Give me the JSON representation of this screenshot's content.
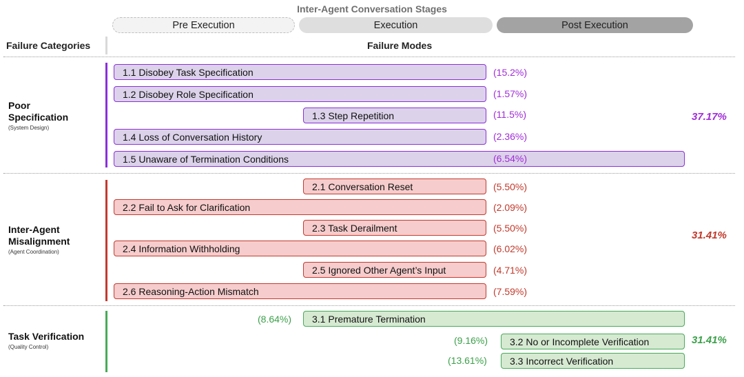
{
  "title": "Inter-Agent Conversation Stages",
  "stages": {
    "pre": "Pre Execution",
    "execution": "Execution",
    "post": "Post Execution"
  },
  "headers": {
    "categories": "Failure Categories",
    "modes": "Failure Modes"
  },
  "colors": {
    "poor_spec": "#8b2fd9",
    "misalignment": "#c33a2e",
    "verification": "#48aa58"
  },
  "categories": [
    {
      "title_line1": "Poor",
      "title_line2": "Specification",
      "subtitle": "(System Design)",
      "total": "37.17%",
      "modes": [
        {
          "label": "1.1 Disobey Task Specification",
          "pct": "(15.2%)"
        },
        {
          "label": "1.2 Disobey Role Specification",
          "pct": "(1.57%)"
        },
        {
          "label": "1.3 Step Repetition",
          "pct": "(11.5%)"
        },
        {
          "label": "1.4 Loss of Conversation History",
          "pct": "(2.36%)"
        },
        {
          "label": "1.5 Unaware of Termination Conditions",
          "pct": "(6.54%)"
        }
      ]
    },
    {
      "title_line1": "Inter-Agent",
      "title_line2": "Misalignment",
      "subtitle": "(Agent Coordination)",
      "total": "31.41%",
      "modes": [
        {
          "label": "2.1 Conversation Reset",
          "pct": "(5.50%)"
        },
        {
          "label": "2.2 Fail to Ask for Clarification",
          "pct": "(2.09%)"
        },
        {
          "label": "2.3 Task Derailment",
          "pct": "(5.50%)"
        },
        {
          "label": "2.4 Information Withholding",
          "pct": "(6.02%)"
        },
        {
          "label": "2.5 Ignored Other Agent’s Input",
          "pct": "(4.71%)"
        },
        {
          "label": "2.6 Reasoning-Action Mismatch",
          "pct": "(7.59%)"
        }
      ]
    },
    {
      "title_line1": "Task Verification",
      "subtitle": "(Quality Control)",
      "total": "31.41%",
      "modes": [
        {
          "label": "3.1  Premature Termination",
          "pct": "(8.64%)"
        },
        {
          "label": "3.2 No or Incomplete Verification",
          "pct": "(9.16%)"
        },
        {
          "label": "3.3 Incorrect Verification",
          "pct": "(13.61%)"
        }
      ]
    }
  ]
}
